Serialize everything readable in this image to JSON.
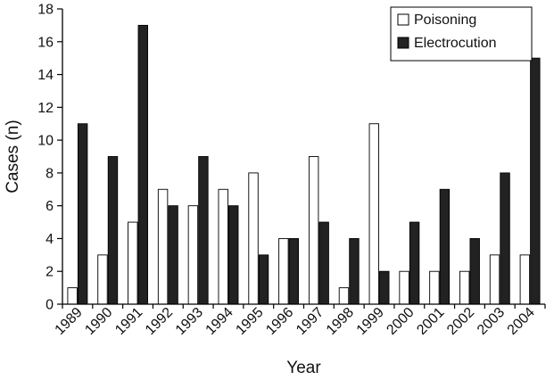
{
  "chart_data": {
    "type": "bar",
    "xlabel": "Year",
    "ylabel": "Cases (n)",
    "categories": [
      "1989",
      "1990",
      "1991",
      "1992",
      "1993",
      "1994",
      "1995",
      "1996",
      "1997",
      "1998",
      "1999",
      "2000",
      "2001",
      "2002",
      "2003",
      "2004"
    ],
    "series": [
      {
        "name": "Poisoning",
        "color": "#ffffff",
        "values": [
          1,
          3,
          5,
          7,
          6,
          7,
          8,
          4,
          9,
          1,
          11,
          2,
          2,
          2,
          3,
          3
        ]
      },
      {
        "name": "Electrocution",
        "color": "#222222",
        "values": [
          11,
          9,
          17,
          6,
          9,
          6,
          3,
          4,
          5,
          4,
          2,
          5,
          7,
          4,
          8,
          15
        ]
      }
    ],
    "ylim": [
      0,
      18
    ],
    "yticks": [
      0,
      2,
      4,
      6,
      8,
      10,
      12,
      14,
      16,
      18
    ],
    "grid": false,
    "legend": "top-right"
  }
}
